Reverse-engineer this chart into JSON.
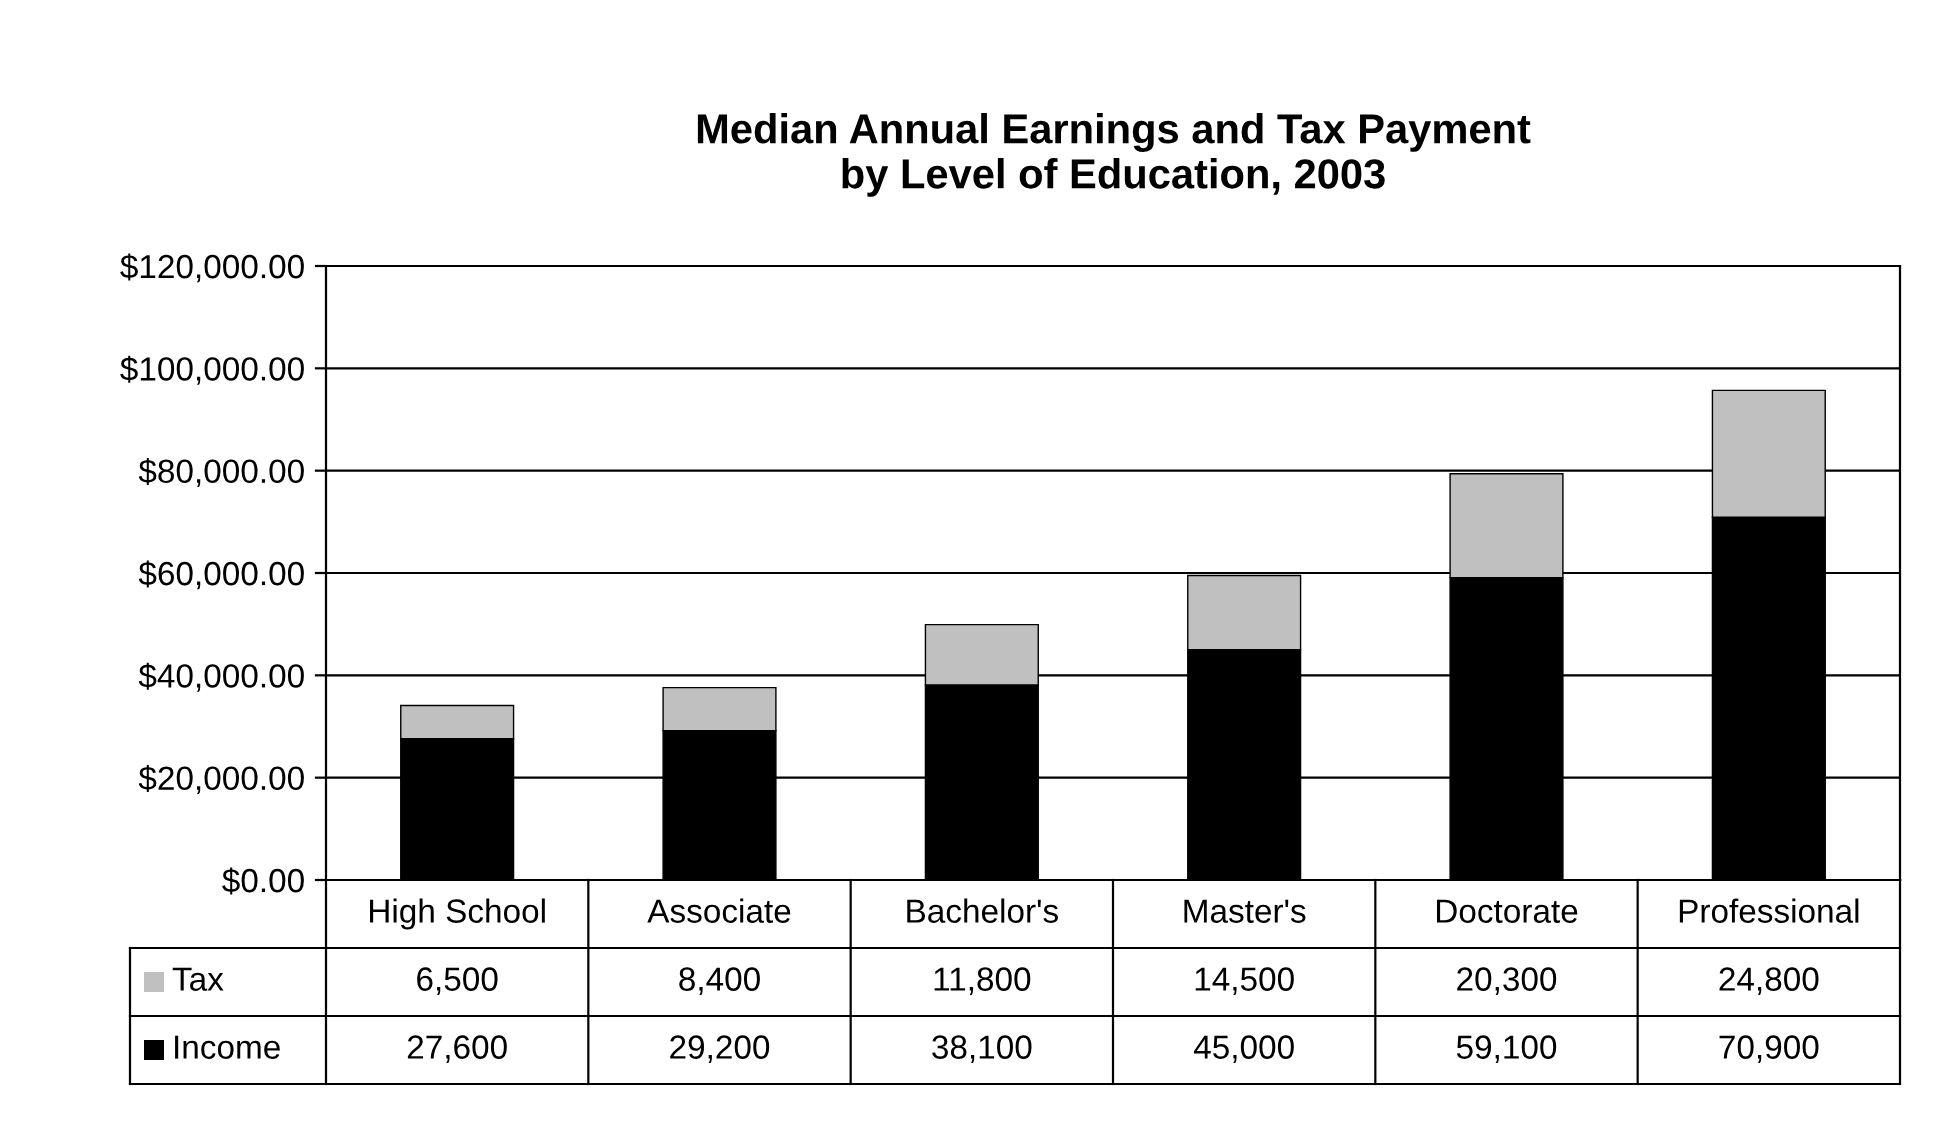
{
  "chart_data": {
    "type": "bar",
    "title": "Median Annual Earnings and Tax Payment\nby Level of Education, 2003",
    "categories": [
      "High School",
      "Associate",
      "Bachelor's",
      "Master's",
      "Doctorate",
      "Professional"
    ],
    "series": [
      {
        "name": "Income",
        "color": "#000000",
        "values": [
          27600,
          29200,
          38100,
          45000,
          59100,
          70900
        ],
        "value_labels": [
          "27,600",
          "29,200",
          "38,100",
          "45,000",
          "59,100",
          "70,900"
        ]
      },
      {
        "name": "Tax",
        "color": "#c0c0c0",
        "values": [
          6500,
          8400,
          11800,
          14500,
          20300,
          24800
        ],
        "value_labels": [
          "6,500",
          "8,400",
          "11,800",
          "14,500",
          "20,300",
          "24,800"
        ]
      }
    ],
    "stacked": true,
    "legend": "bottom left",
    "grid": "y",
    "ylim": [
      0,
      120000
    ],
    "yticks": [
      {
        "value": 0,
        "label": "$0.00"
      },
      {
        "value": 20000,
        "label": "$20,000.00"
      },
      {
        "value": 40000,
        "label": "$40,000.00"
      },
      {
        "value": 60000,
        "label": "$60,000.00"
      },
      {
        "value": 80000,
        "label": "$80,000.00"
      },
      {
        "value": 100000,
        "label": "$100,000.00"
      },
      {
        "value": 120000,
        "label": "$120,000.00"
      }
    ]
  }
}
